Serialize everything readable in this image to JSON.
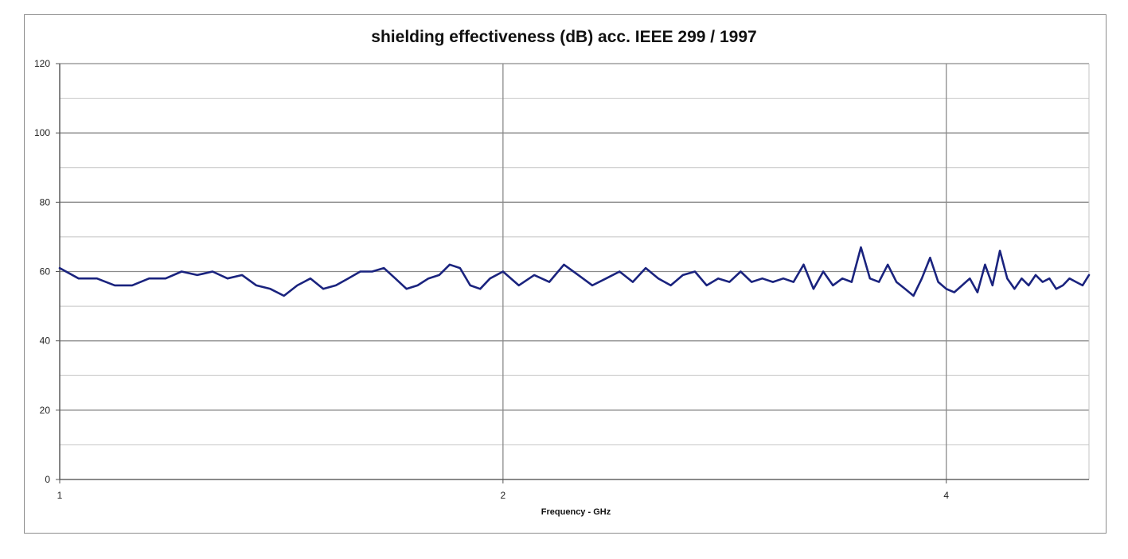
{
  "chart_data": {
    "type": "line",
    "title": "shielding effectiveness (dB) acc. IEEE 299 / 1997",
    "xlabel": "Frequency - GHz",
    "ylabel": "",
    "x_scale": "log2",
    "xlim": [
      1,
      5.0
    ],
    "ylim": [
      0,
      120
    ],
    "y_ticks": [
      0,
      20,
      40,
      60,
      80,
      100,
      120
    ],
    "x_ticks": [
      1,
      2,
      4
    ],
    "grid": true,
    "legend": "none",
    "line_color": "#1a237e",
    "series": [
      {
        "x": [
          1.0,
          1.03,
          1.06,
          1.09,
          1.12,
          1.15,
          1.18,
          1.21,
          1.24,
          1.27,
          1.3,
          1.33,
          1.36,
          1.39,
          1.42,
          1.45,
          1.48,
          1.51,
          1.54,
          1.57,
          1.6,
          1.63,
          1.66,
          1.69,
          1.72,
          1.75,
          1.78,
          1.81,
          1.84,
          1.87,
          1.9,
          1.93,
          1.96,
          2.0,
          2.05,
          2.1,
          2.15,
          2.2,
          2.25,
          2.3,
          2.35,
          2.4,
          2.45,
          2.5,
          2.55,
          2.6,
          2.65,
          2.7,
          2.75,
          2.8,
          2.85,
          2.9,
          2.95,
          3.0,
          3.05,
          3.1,
          3.15,
          3.2,
          3.25,
          3.3,
          3.35,
          3.4,
          3.45,
          3.5,
          3.55,
          3.6,
          3.65,
          3.7,
          3.75,
          3.8,
          3.85,
          3.9,
          3.95,
          4.0,
          4.05,
          4.1,
          4.15,
          4.2,
          4.25,
          4.3,
          4.35,
          4.4,
          4.45,
          4.5,
          4.55,
          4.6,
          4.65,
          4.7,
          4.75,
          4.8,
          4.85,
          4.9,
          4.95,
          5.0
        ],
        "y": [
          61,
          58,
          58,
          56,
          56,
          58,
          58,
          60,
          59,
          60,
          58,
          59,
          56,
          55,
          53,
          56,
          58,
          55,
          56,
          58,
          60,
          60,
          61,
          58,
          55,
          56,
          58,
          59,
          62,
          61,
          56,
          55,
          58,
          60,
          56,
          59,
          57,
          62,
          59,
          56,
          58,
          60,
          57,
          61,
          58,
          56,
          59,
          60,
          56,
          58,
          57,
          60,
          57,
          58,
          57,
          58,
          57,
          62,
          55,
          60,
          56,
          58,
          57,
          67,
          58,
          57,
          62,
          57,
          55,
          53,
          58,
          64,
          57,
          55,
          54,
          56,
          58,
          54,
          62,
          56,
          66,
          58,
          55,
          58,
          56,
          59,
          57,
          58,
          55,
          56,
          58,
          57,
          56,
          59
        ]
      }
    ]
  }
}
